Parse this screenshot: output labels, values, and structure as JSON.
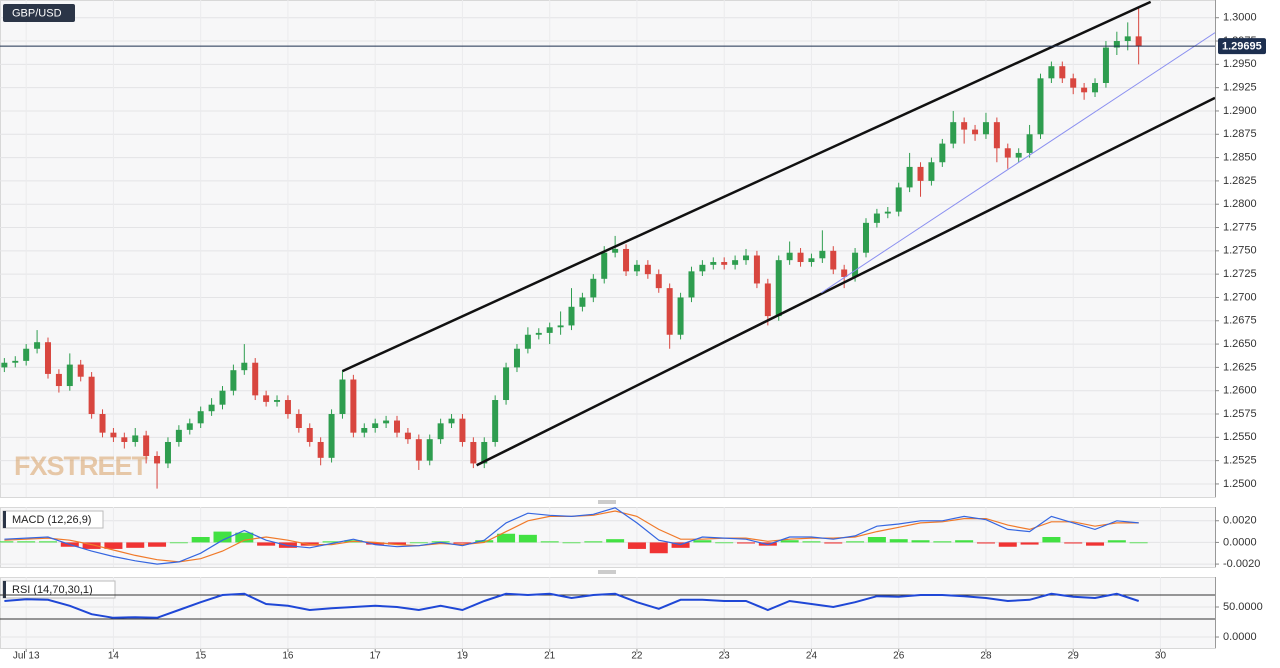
{
  "chart_data": [
    {
      "type": "candlestick",
      "title": "GBP/USD",
      "watermark": "FXSTREET",
      "xlim": [
        -0.4,
        111
      ],
      "xticks": [
        {
          "value": 2,
          "label": "Jul 13"
        },
        {
          "value": 10,
          "label": "14"
        },
        {
          "value": 18,
          "label": "15"
        },
        {
          "value": 26,
          "label": "16"
        },
        {
          "value": 34,
          "label": "17"
        },
        {
          "value": 42,
          "label": "19"
        },
        {
          "value": 50,
          "label": "21"
        },
        {
          "value": 58,
          "label": "22"
        },
        {
          "value": 66,
          "label": "23"
        },
        {
          "value": 74,
          "label": "24"
        },
        {
          "value": 82,
          "label": "26"
        },
        {
          "value": 90,
          "label": "28"
        },
        {
          "value": 98,
          "label": "29"
        },
        {
          "value": 106,
          "label": "30"
        }
      ],
      "ylim": [
        1.2486,
        1.3019
      ],
      "yticks": [
        {
          "value": 1.25,
          "label": "1.2500"
        },
        {
          "value": 1.2525,
          "label": "1.2525"
        },
        {
          "value": 1.255,
          "label": "1.2550"
        },
        {
          "value": 1.2575,
          "label": "1.2575"
        },
        {
          "value": 1.26,
          "label": "1.2600"
        },
        {
          "value": 1.2625,
          "label": "1.2625"
        },
        {
          "value": 1.265,
          "label": "1.2650"
        },
        {
          "value": 1.2675,
          "label": "1.2675"
        },
        {
          "value": 1.27,
          "label": "1.2700"
        },
        {
          "value": 1.2725,
          "label": "1.2725"
        },
        {
          "value": 1.275,
          "label": "1.2750"
        },
        {
          "value": 1.2775,
          "label": "1.2775"
        },
        {
          "value": 1.28,
          "label": "1.2800"
        },
        {
          "value": 1.2825,
          "label": "1.2825"
        },
        {
          "value": 1.285,
          "label": "1.2850"
        },
        {
          "value": 1.2875,
          "label": "1.2875"
        },
        {
          "value": 1.29,
          "label": "1.2900"
        },
        {
          "value": 1.2925,
          "label": "1.2925"
        },
        {
          "value": 1.295,
          "label": "1.2950"
        },
        {
          "value": 1.2975,
          "label": "1.2975"
        },
        {
          "value": 1.3,
          "label": "1.3000"
        }
      ],
      "grid": true,
      "up_color": "#2e9d4f",
      "down_color": "#d8463f",
      "open": [
        1.2625,
        1.263,
        1.2632,
        1.2645,
        1.2652,
        1.2618,
        1.2605,
        1.2628,
        1.2615,
        1.2575,
        1.2555,
        1.255,
        1.2545,
        1.2552,
        1.253,
        1.2522,
        1.2545,
        1.2558,
        1.2565,
        1.2578,
        1.2585,
        1.26,
        1.2622,
        1.263,
        1.2595,
        1.2588,
        1.259,
        1.2575,
        1.256,
        1.2545,
        1.2528,
        1.2575,
        1.2612,
        1.2555,
        1.256,
        1.2565,
        1.2568,
        1.2555,
        1.2548,
        1.2525,
        1.2548,
        1.2565,
        1.257,
        1.2545,
        1.2522,
        1.2545,
        1.259,
        1.2625,
        1.2645,
        1.266,
        1.2662,
        1.2668,
        1.267,
        1.269,
        1.27,
        1.272,
        1.2748,
        1.2752,
        1.2728,
        1.2735,
        1.2725,
        1.271,
        1.266,
        1.27,
        1.2728,
        1.2735,
        1.2738,
        1.2735,
        1.274,
        1.2745,
        1.2715,
        1.268,
        1.274,
        1.2748,
        1.2738,
        1.2742,
        1.275,
        1.273,
        1.2722,
        1.2748,
        1.278,
        1.279,
        1.2792,
        1.2818,
        1.284,
        1.2825,
        1.2845,
        1.2865,
        1.2888,
        1.288,
        1.2875,
        1.2888,
        1.286,
        1.285,
        1.2855,
        1.2875,
        1.2935,
        1.2948,
        1.2935,
        1.2925,
        1.292,
        1.293,
        1.2968,
        1.2975,
        1.298
      ],
      "high": [
        1.2635,
        1.2637,
        1.265,
        1.2665,
        1.2657,
        1.2623,
        1.264,
        1.2633,
        1.262,
        1.258,
        1.256,
        1.2555,
        1.256,
        1.2557,
        1.2535,
        1.255,
        1.2563,
        1.257,
        1.2583,
        1.2592,
        1.2605,
        1.2628,
        1.265,
        1.2635,
        1.26,
        1.2595,
        1.2595,
        1.258,
        1.2565,
        1.255,
        1.258,
        1.2622,
        1.2617,
        1.2565,
        1.257,
        1.2573,
        1.2573,
        1.256,
        1.2553,
        1.2553,
        1.257,
        1.2575,
        1.2575,
        1.255,
        1.255,
        1.2595,
        1.263,
        1.265,
        1.2668,
        1.2667,
        1.2673,
        1.2685,
        1.271,
        1.2705,
        1.2725,
        1.2755,
        1.2766,
        1.2757,
        1.274,
        1.274,
        1.273,
        1.2715,
        1.2705,
        1.2733,
        1.274,
        1.2743,
        1.2743,
        1.2745,
        1.2752,
        1.275,
        1.272,
        1.2745,
        1.276,
        1.2753,
        1.2747,
        1.2772,
        1.2755,
        1.2735,
        1.2753,
        1.2785,
        1.2795,
        1.2797,
        1.2823,
        1.2855,
        1.2845,
        1.285,
        1.287,
        1.29,
        1.2893,
        1.2885,
        1.2898,
        1.2893,
        1.2865,
        1.286,
        1.2885,
        1.294,
        1.2953,
        1.2953,
        1.294,
        1.293,
        1.2935,
        1.2975,
        1.2985,
        1.2995,
        1.3012
      ],
      "low": [
        1.262,
        1.2625,
        1.2627,
        1.264,
        1.2613,
        1.2598,
        1.26,
        1.261,
        1.257,
        1.255,
        1.2545,
        1.2538,
        1.254,
        1.2522,
        1.2495,
        1.2517,
        1.254,
        1.2553,
        1.256,
        1.2573,
        1.258,
        1.2595,
        1.2617,
        1.259,
        1.2583,
        1.2583,
        1.257,
        1.2555,
        1.254,
        1.252,
        1.2523,
        1.257,
        1.255,
        1.255,
        1.2555,
        1.256,
        1.255,
        1.2543,
        1.2515,
        1.252,
        1.2543,
        1.256,
        1.254,
        1.2517,
        1.2517,
        1.254,
        1.2585,
        1.262,
        1.264,
        1.2655,
        1.265,
        1.266,
        1.2665,
        1.2685,
        1.2695,
        1.2715,
        1.2743,
        1.2723,
        1.2723,
        1.272,
        1.2705,
        1.2645,
        1.2655,
        1.2695,
        1.2723,
        1.273,
        1.273,
        1.273,
        1.2735,
        1.271,
        1.267,
        1.2675,
        1.2735,
        1.2733,
        1.2733,
        1.2737,
        1.2725,
        1.271,
        1.2717,
        1.2743,
        1.2775,
        1.2785,
        1.2787,
        1.2813,
        1.2808,
        1.282,
        1.284,
        1.286,
        1.2865,
        1.2868,
        1.287,
        1.2845,
        1.2838,
        1.2845,
        1.285,
        1.287,
        1.293,
        1.293,
        1.2918,
        1.2912,
        1.2915,
        1.2925,
        1.296,
        1.2965,
        1.295
      ],
      "close": [
        1.263,
        1.2632,
        1.2645,
        1.2652,
        1.2618,
        1.2605,
        1.2628,
        1.2615,
        1.2575,
        1.2555,
        1.255,
        1.2545,
        1.2552,
        1.253,
        1.2522,
        1.2545,
        1.2558,
        1.2565,
        1.2578,
        1.2585,
        1.26,
        1.2622,
        1.263,
        1.2595,
        1.2588,
        1.259,
        1.2575,
        1.256,
        1.2545,
        1.2528,
        1.2575,
        1.2612,
        1.2555,
        1.256,
        1.2565,
        1.2568,
        1.2555,
        1.2548,
        1.2525,
        1.2548,
        1.2565,
        1.257,
        1.2545,
        1.2522,
        1.2545,
        1.259,
        1.2625,
        1.2645,
        1.266,
        1.2662,
        1.2668,
        1.267,
        1.269,
        1.27,
        1.272,
        1.2748,
        1.2752,
        1.2728,
        1.2735,
        1.2725,
        1.271,
        1.266,
        1.27,
        1.2728,
        1.2735,
        1.2738,
        1.2735,
        1.274,
        1.2745,
        1.2715,
        1.268,
        1.274,
        1.2748,
        1.2738,
        1.2742,
        1.275,
        1.273,
        1.2722,
        1.2748,
        1.278,
        1.279,
        1.2792,
        1.2818,
        1.284,
        1.2825,
        1.2845,
        1.2865,
        1.2888,
        1.288,
        1.2875,
        1.2888,
        1.286,
        1.285,
        1.2855,
        1.2875,
        1.2935,
        1.2948,
        1.2935,
        1.2925,
        1.292,
        1.293,
        1.2968,
        1.2975,
        1.298,
        1.29695
      ],
      "last_price": {
        "value": 1.29695,
        "label": "1.29695"
      },
      "last_price_color": "#1d2f4f",
      "trendlines": [
        {
          "color": "#111111",
          "width": 2.5,
          "points": [
            [
              31,
              1.2621
            ],
            [
              105.1,
              1.3017
            ]
          ]
        },
        {
          "color": "#111111",
          "width": 2.5,
          "points": [
            [
              43.3,
              1.252
            ],
            [
              111,
              1.2914
            ]
          ]
        },
        {
          "color": "#8a8ff0",
          "width": 1,
          "points": [
            [
              74.9,
              1.2705
            ],
            [
              111,
              1.2984
            ]
          ]
        }
      ]
    },
    {
      "type": "macd",
      "title": "MACD (12,26,9)",
      "xlim": [
        -0.4,
        111
      ],
      "ylim": [
        -0.00227,
        0.00327
      ],
      "yticks": [
        {
          "value": 0.002,
          "label": "0.0020"
        },
        {
          "value": 0,
          "label": "0.0000"
        },
        {
          "value": -0.002,
          "label": "-0.0020"
        }
      ],
      "x": [
        0,
        2,
        4,
        6,
        8,
        10,
        12,
        14,
        16,
        18,
        20,
        22,
        24,
        26,
        28,
        30,
        32,
        34,
        36,
        38,
        40,
        42,
        44,
        46,
        48,
        50,
        52,
        54,
        56,
        58,
        60,
        62,
        64,
        66,
        68,
        70,
        72,
        74,
        76,
        78,
        80,
        82,
        84,
        86,
        88,
        90,
        92,
        94,
        96,
        98,
        100,
        102,
        104
      ],
      "macd": {
        "color": "#3566e0",
        "values": [
          0.0003,
          0.0004,
          0.0005,
          -0.0002,
          -0.0008,
          -0.0013,
          -0.0017,
          -0.002,
          -0.0018,
          -0.001,
          0.0002,
          0.0011,
          0.0002,
          -0.0003,
          -0.0005,
          -0.0001,
          0.0003,
          -0.0002,
          -0.0004,
          -0.0003,
          0.0,
          -0.0003,
          0.0002,
          0.0018,
          0.0027,
          0.0025,
          0.0024,
          0.0026,
          0.0032,
          0.0018,
          0.0002,
          -0.0002,
          0.0005,
          0.0004,
          0.0003,
          -0.0002,
          0.0005,
          0.0005,
          0.0003,
          0.0006,
          0.0015,
          0.0017,
          0.002,
          0.002,
          0.0024,
          0.0021,
          0.0012,
          0.001,
          0.0024,
          0.0018,
          0.0012,
          0.002,
          0.0018
        ]
      },
      "signal": {
        "color": "#f07a2a",
        "values": [
          0.0002,
          0.0003,
          0.0004,
          0.0002,
          -0.0002,
          -0.0007,
          -0.0012,
          -0.0016,
          -0.0018,
          -0.0015,
          -0.0008,
          0.0002,
          0.0005,
          0.0002,
          -0.0002,
          -0.0002,
          0.0001,
          0.0,
          -0.0002,
          -0.0003,
          -0.0001,
          -0.0002,
          0.0,
          0.001,
          0.002,
          0.0024,
          0.0024,
          0.0025,
          0.0029,
          0.0024,
          0.0012,
          0.0003,
          0.0003,
          0.0004,
          0.0004,
          0.0001,
          0.0003,
          0.0004,
          0.0004,
          0.0005,
          0.001,
          0.0014,
          0.0018,
          0.0019,
          0.0022,
          0.0022,
          0.0016,
          0.0012,
          0.0019,
          0.0019,
          0.0015,
          0.0018,
          0.0018
        ]
      },
      "histogram": {
        "up_color": "#22dd22",
        "down_color": "#ee1111",
        "values": [
          0.0001,
          0.0001,
          0.0001,
          -0.0004,
          -0.0006,
          -0.0006,
          -0.0005,
          -0.0004,
          0.0,
          0.0005,
          0.001,
          0.0009,
          -0.0003,
          -0.0005,
          -0.0003,
          0.0001,
          0.0002,
          -0.0002,
          -0.0002,
          0.0,
          0.0001,
          -0.0001,
          0.0002,
          0.0008,
          0.0007,
          0.0001,
          0.0,
          0.0001,
          0.0003,
          -0.0006,
          -0.001,
          -0.0005,
          0.0002,
          0.0,
          -0.0001,
          -0.0003,
          0.0002,
          0.0001,
          -0.0001,
          0.0001,
          0.0005,
          0.0003,
          0.0002,
          0.0001,
          0.0002,
          -0.0001,
          -0.0004,
          -0.0002,
          0.0005,
          -0.0001,
          -0.0003,
          0.0002,
          0.0
        ]
      }
    },
    {
      "type": "rsi",
      "title": "RSI (14,70,30,1)",
      "xlim": [
        -0.4,
        111
      ],
      "ylim": [
        -18.3,
        100
      ],
      "yticks": [
        {
          "value": 50,
          "label": "50.0000"
        },
        {
          "value": 0,
          "label": "0.0000"
        }
      ],
      "levels": [
        70,
        30
      ],
      "x": [
        0,
        2,
        4,
        6,
        8,
        10,
        12,
        14,
        16,
        18,
        20,
        22,
        24,
        26,
        28,
        30,
        32,
        34,
        36,
        38,
        40,
        42,
        44,
        46,
        48,
        50,
        52,
        54,
        56,
        58,
        60,
        62,
        64,
        66,
        68,
        70,
        72,
        74,
        76,
        78,
        80,
        82,
        84,
        86,
        88,
        90,
        92,
        94,
        96,
        98,
        100,
        102,
        104
      ],
      "color": "#1f47d6",
      "values": [
        60,
        63,
        62,
        52,
        38,
        32,
        33,
        32,
        45,
        58,
        70,
        72,
        55,
        52,
        45,
        48,
        50,
        52,
        50,
        45,
        52,
        45,
        60,
        72,
        70,
        72,
        65,
        70,
        72,
        58,
        47,
        62,
        62,
        60,
        60,
        45,
        60,
        55,
        50,
        58,
        68,
        67,
        70,
        70,
        68,
        65,
        60,
        62,
        72,
        67,
        65,
        72,
        60
      ]
    }
  ]
}
